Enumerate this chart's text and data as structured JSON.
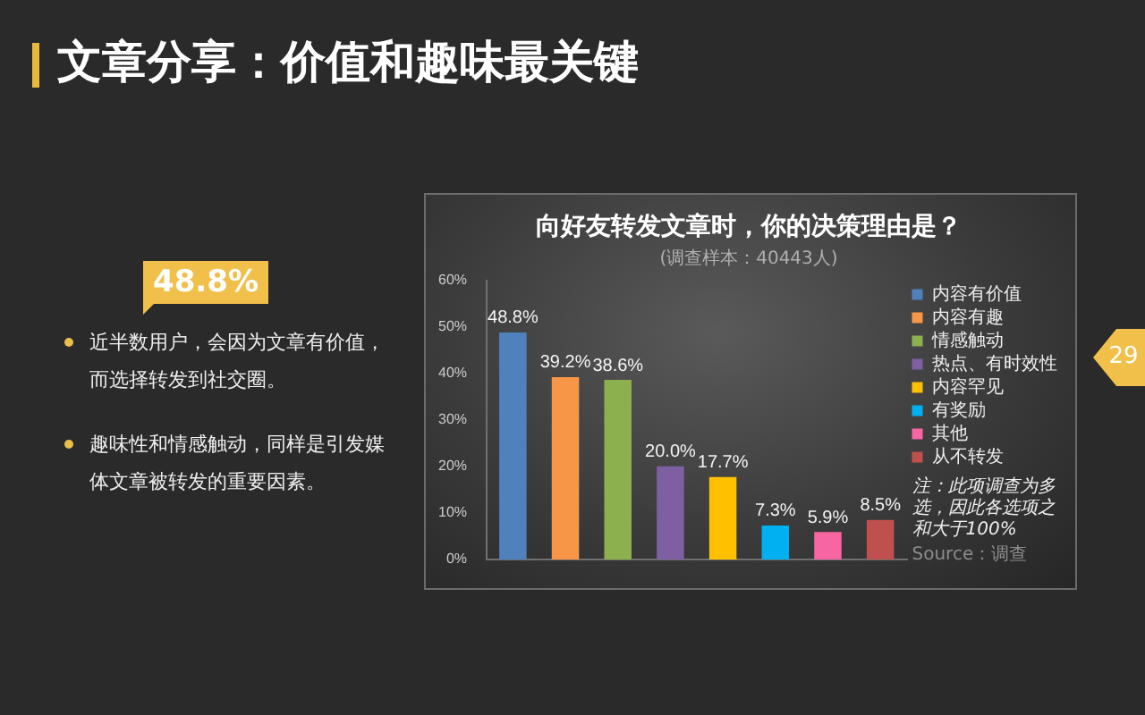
{
  "chart_data": [
    {
      "type": "other",
      "title": "文章分享：价值和趣味最关键",
      "annotations": [
        "48.8%",
        "近半数用户，会因为文章有价值，而选择转发到社交圈。",
        "趣味性和情感触动，同样是引发媒体文章被转发的重要因素。",
        "29"
      ]
    },
    {
      "type": "bar",
      "title": "向好友转发文章时，你的决策理由是？",
      "subtitle": "(调查样本：40443人)",
      "categories": [
        null
      ],
      "series": [
        {
          "name": "内容有价值",
          "color": "#4f81bd",
          "values": [
            48.8
          ],
          "value_labels": [
            "48.8%"
          ]
        },
        {
          "name": "内容有趣",
          "color": "#f79646",
          "values": [
            39.2
          ],
          "value_labels": [
            "39.2%"
          ]
        },
        {
          "name": "情感触动",
          "color": "#8db04f",
          "values": [
            38.6
          ],
          "value_labels": [
            "38.6%"
          ]
        },
        {
          "name": "热点、有时效性",
          "color": "#7e5fa2",
          "values": [
            20.0
          ],
          "value_labels": [
            "20.0%"
          ]
        },
        {
          "name": "内容罕见",
          "color": "#ffc000",
          "values": [
            17.7
          ],
          "value_labels": [
            "17.7%"
          ]
        },
        {
          "name": "有奖励",
          "color": "#00b0f0",
          "values": [
            7.3
          ],
          "value_labels": [
            "7.3%"
          ]
        },
        {
          "name": "其他",
          "color": "#f765a3",
          "values": [
            5.9
          ],
          "value_labels": [
            "5.9%"
          ]
        },
        {
          "name": "从不转发",
          "color": "#c0504d",
          "values": [
            8.5
          ],
          "value_labels": [
            "8.5%"
          ]
        }
      ],
      "ylim": [
        0,
        60
      ],
      "yticks": [
        {
          "value": 0,
          "label": "0%"
        },
        {
          "value": 10,
          "label": "10%"
        },
        {
          "value": 20,
          "label": "20%"
        },
        {
          "value": 30,
          "label": "30%"
        },
        {
          "value": 40,
          "label": "40%"
        },
        {
          "value": 50,
          "label": "50%"
        },
        {
          "value": 60,
          "label": "60%"
        }
      ],
      "tick_labels": "y",
      "legend": "top right",
      "annotations": [
        "注：此项调查为多选，因此各选项之和大于100%",
        "Source：调查"
      ]
    }
  ]
}
